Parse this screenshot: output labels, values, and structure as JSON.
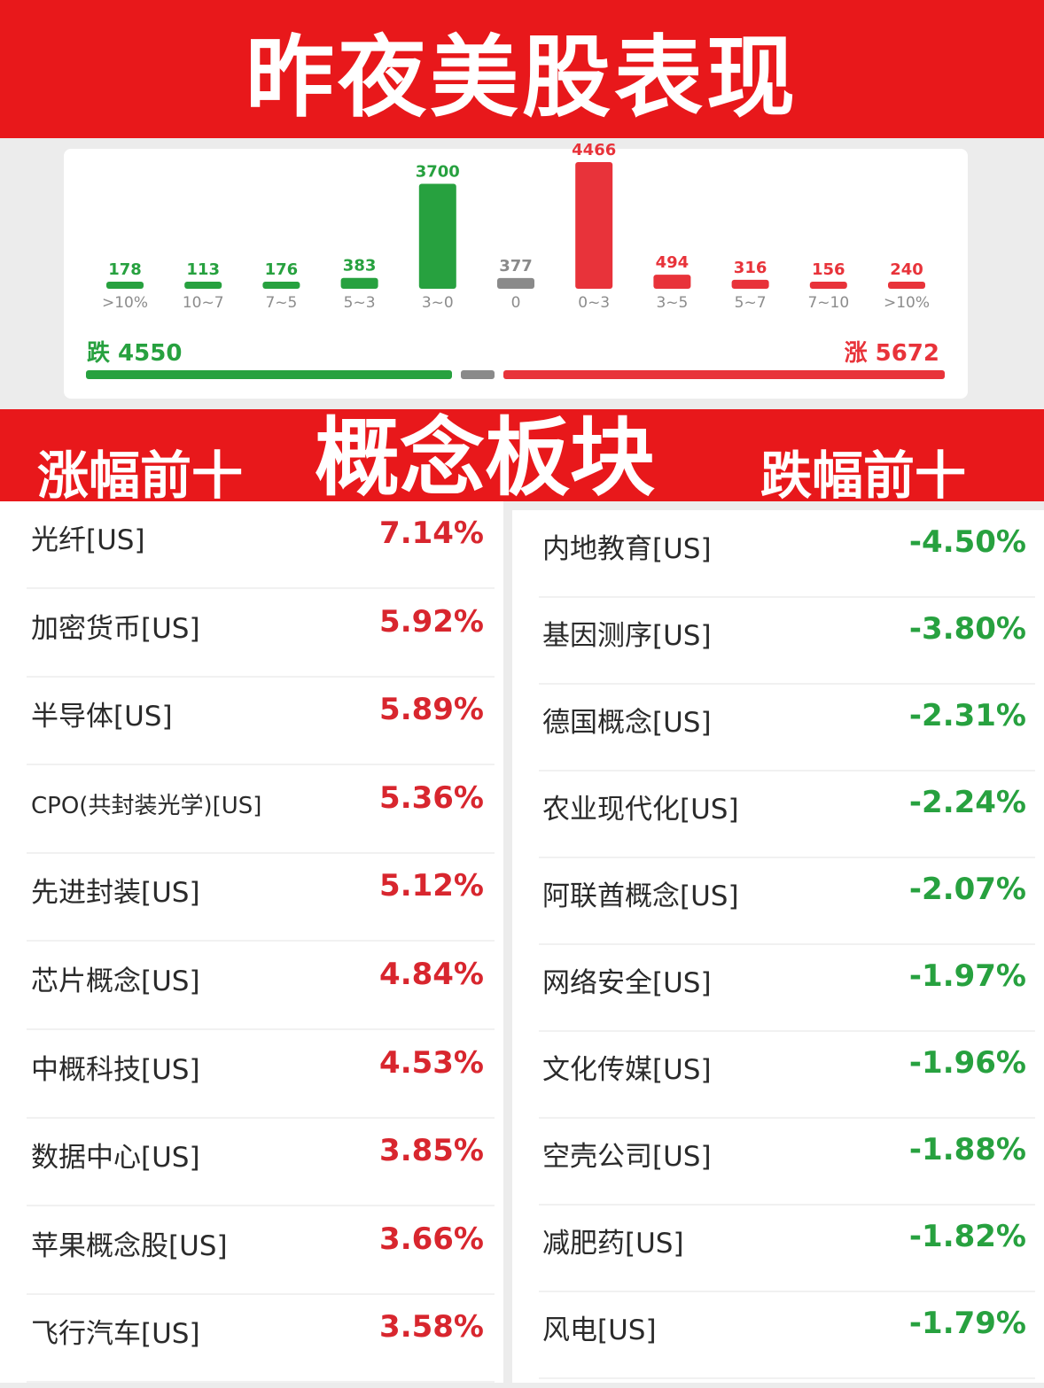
{
  "header": {
    "title": "昨夜美股表现"
  },
  "summary": {
    "down_label": "跌 4550",
    "up_label": "涨 5672"
  },
  "colors": {
    "up": "#e8333a",
    "down": "#27a13f",
    "flat": "#8a8a8a",
    "banner": "#e8181b"
  },
  "chart_data": {
    "type": "bar",
    "title": "",
    "categories": [
      ">10%",
      "10~7",
      "7~5",
      "5~3",
      "3~0",
      "0",
      "0~3",
      "3~5",
      "5~7",
      "7~10",
      ">10%"
    ],
    "values": [
      178,
      113,
      176,
      383,
      3700,
      377,
      4466,
      494,
      316,
      156,
      240
    ],
    "bar_colors": [
      "down",
      "down",
      "down",
      "down",
      "down",
      "flat",
      "up",
      "up",
      "up",
      "up",
      "up"
    ],
    "xlabel": "",
    "ylabel": "",
    "grid": false
  },
  "section": {
    "left_label": "涨幅前十",
    "center_label": "概念板块",
    "right_label": "跌幅前十"
  },
  "gainers": [
    {
      "name": "光纤[US]",
      "pct": "7.14%"
    },
    {
      "name": "加密货币[US]",
      "pct": "5.92%"
    },
    {
      "name": "半导体[US]",
      "pct": "5.89%"
    },
    {
      "name": "CPO(共封装光学)[US]",
      "pct": "5.36%"
    },
    {
      "name": "先进封装[US]",
      "pct": "5.12%"
    },
    {
      "name": "芯片概念[US]",
      "pct": "4.84%"
    },
    {
      "name": "中概科技[US]",
      "pct": "4.53%"
    },
    {
      "name": "数据中心[US]",
      "pct": "3.85%"
    },
    {
      "name": "苹果概念股[US]",
      "pct": "3.66%"
    },
    {
      "name": "飞行汽车[US]",
      "pct": "3.58%"
    }
  ],
  "losers": [
    {
      "name": "内地教育[US]",
      "pct": "-4.50%"
    },
    {
      "name": "基因测序[US]",
      "pct": "-3.80%"
    },
    {
      "name": "德国概念[US]",
      "pct": "-2.31%"
    },
    {
      "name": "农业现代化[US]",
      "pct": "-2.24%"
    },
    {
      "name": "阿联酋概念[US]",
      "pct": "-2.07%"
    },
    {
      "name": "网络安全[US]",
      "pct": "-1.97%"
    },
    {
      "name": "文化传媒[US]",
      "pct": "-1.96%"
    },
    {
      "name": "空壳公司[US]",
      "pct": "-1.88%"
    },
    {
      "name": "减肥药[US]",
      "pct": "-1.82%"
    },
    {
      "name": "风电[US]",
      "pct": "-1.79%"
    }
  ]
}
